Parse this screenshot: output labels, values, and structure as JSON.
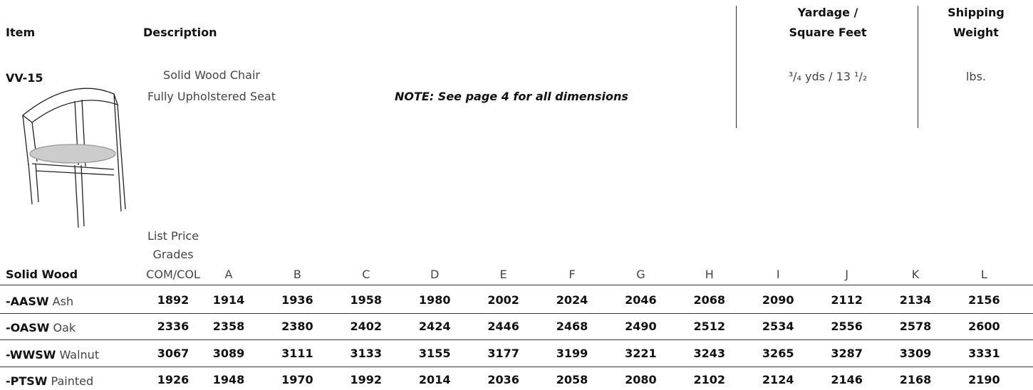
{
  "header": {
    "item": "Item",
    "description": "Description",
    "yardage": [
      "Yardage /",
      "Square Feet"
    ],
    "shipping": [
      "Shipping",
      "Weight"
    ]
  },
  "product": {
    "item": "VV-15",
    "description": [
      "Solid Wood Chair",
      "Fully Upholstered Seat"
    ],
    "note": "NOTE: See page 4 for all dimensions",
    "yardage": "³/₄ yds / 13 ¹/₂",
    "weight": "lbs."
  },
  "price_table": {
    "caption": [
      "List Price",
      "Grades"
    ],
    "columns": [
      "Solid Wood",
      "COM/COL",
      "A",
      "B",
      "C",
      "D",
      "E",
      "F",
      "G",
      "H",
      "I",
      "J",
      "K",
      "L"
    ],
    "rows": [
      {
        "code": "-AASW",
        "finish": "Ash",
        "prices": [
          1892,
          1914,
          1936,
          1958,
          1980,
          2002,
          2024,
          2046,
          2068,
          2090,
          2112,
          2134,
          2156
        ]
      },
      {
        "code": "-OASW",
        "finish": "Oak",
        "prices": [
          2336,
          2358,
          2380,
          2402,
          2424,
          2446,
          2468,
          2490,
          2512,
          2534,
          2556,
          2578,
          2600
        ]
      },
      {
        "code": "-WWSW",
        "finish": "Walnut",
        "prices": [
          3067,
          3089,
          3111,
          3133,
          3155,
          3177,
          3199,
          3221,
          3243,
          3265,
          3287,
          3309,
          3331
        ]
      },
      {
        "code": "-PTSW",
        "finish": "Painted",
        "prices": [
          1926,
          1948,
          1970,
          1992,
          2014,
          2036,
          2058,
          2080,
          2102,
          2124,
          2146,
          2168,
          2190
        ]
      }
    ]
  }
}
